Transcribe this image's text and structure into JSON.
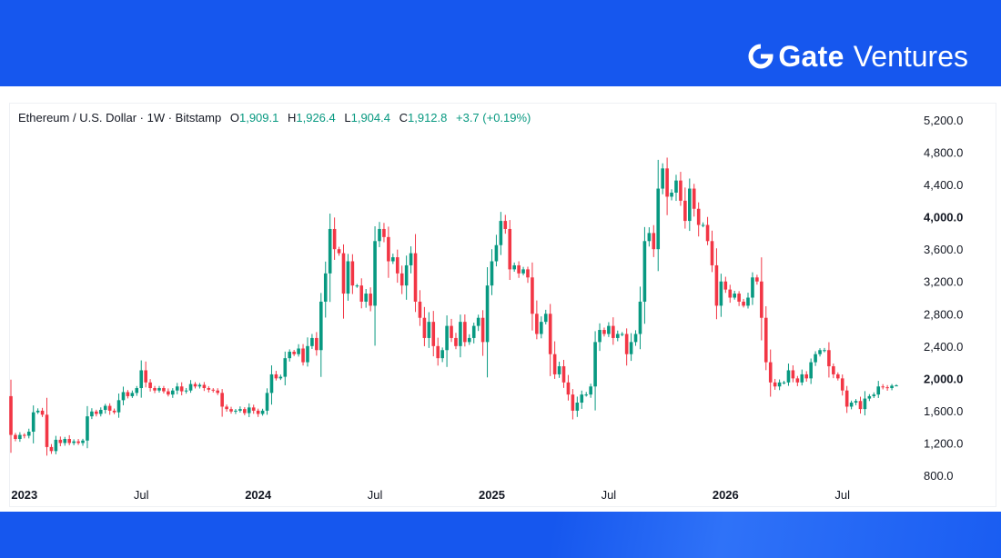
{
  "brand": {
    "name": "Gate",
    "sub": "Ventures",
    "icon": "gate-logo-icon",
    "background_color": "#1657ee"
  },
  "chart_data": {
    "type": "candlestick",
    "title": "Ethereum / U.S. Dollar · 1W · Bitstamp",
    "ohlc_labels": {
      "o": "O",
      "h": "H",
      "l": "L",
      "c": "C"
    },
    "ohlc_values": {
      "o": "1,909.1",
      "h": "1,926.4",
      "l": "1,904.4",
      "c": "1,912.8"
    },
    "change": "+3.7 (+0.19%)",
    "ylim": [
      700,
      5400
    ],
    "yticks": [
      "5,200.0",
      "4,800.0",
      "4,400.0",
      "4,000.0",
      "3,600.0",
      "3,200.0",
      "2,800.0",
      "2,400.0",
      "2,000.0",
      "1,600.0",
      "1,200.0",
      "800.0"
    ],
    "ytick_values": [
      5200,
      4800,
      4400,
      4000,
      3600,
      3200,
      2800,
      2400,
      2000,
      1600,
      1200,
      800
    ],
    "ytick_bold": [
      "4,000.0",
      "2,000.0"
    ],
    "xticks": [
      "2023",
      "Jul",
      "2024",
      "Jul",
      "2025",
      "Jul",
      "2026",
      "Jul"
    ],
    "xtick_index": [
      3,
      29,
      55,
      81,
      107,
      133,
      159,
      185
    ],
    "xtick_bold": [
      "2023",
      "2024",
      "2025",
      "2026"
    ],
    "up_color": "#089981",
    "down_color": "#f23645",
    "grid": false,
    "closes": [
      1300,
      1250,
      1300,
      1290,
      1340,
      1580,
      1600,
      1550,
      1150,
      1100,
      1240,
      1200,
      1250,
      1200,
      1220,
      1200,
      1230,
      1530,
      1590,
      1560,
      1610,
      1660,
      1600,
      1580,
      1730,
      1830,
      1780,
      1820,
      1880,
      2100,
      1950,
      1880,
      1850,
      1880,
      1840,
      1800,
      1850,
      1900,
      1840,
      1850,
      1930,
      1900,
      1920,
      1880,
      1860,
      1850,
      1820,
      1650,
      1620,
      1590,
      1600,
      1620,
      1570,
      1640,
      1600,
      1560,
      1600,
      1820,
      2050,
      2000,
      2020,
      2250,
      2330,
      2300,
      2370,
      2200,
      2400,
      2500,
      2350,
      2950,
      3300,
      3850,
      3600,
      3550,
      3050,
      3450,
      3150,
      3150,
      2950,
      3050,
      2900,
      3700,
      3850,
      3750,
      3450,
      3500,
      3300,
      3150,
      3400,
      3550,
      2950,
      2750,
      2500,
      2700,
      2400,
      2250,
      2350,
      2650,
      2500,
      2400,
      2700,
      2450,
      2500,
      2650,
      2750,
      2450,
      3150,
      3450,
      3650,
      3950,
      3850,
      3350,
      3400,
      3300,
      3350,
      3250,
      2800,
      2550,
      2700,
      2800,
      2300,
      2050,
      2150,
      1950,
      1800,
      1600,
      1700,
      1800,
      1800,
      1900,
      2450,
      2600,
      2550,
      2650,
      2500,
      2550,
      2550,
      2300,
      2450,
      2550,
      2950,
      3700,
      3800,
      3600,
      4350,
      4600,
      4250,
      4300,
      4450,
      4200,
      3950,
      4350,
      4100,
      3900,
      3900,
      3700,
      3400,
      2900,
      3200,
      3100,
      3000,
      3050,
      2950,
      2900,
      3000,
      3250,
      3200,
      2750,
      2200,
      1950,
      1900,
      1950,
      1950,
      2100,
      2000,
      1950,
      2050,
      2000,
      2200,
      2300,
      2350,
      2350,
      2150,
      2050,
      2000,
      1850,
      1650,
      1700,
      1720,
      1620,
      1750,
      1780,
      1800,
      1900,
      1890,
      1880,
      1909.1,
      1912.8
    ]
  }
}
